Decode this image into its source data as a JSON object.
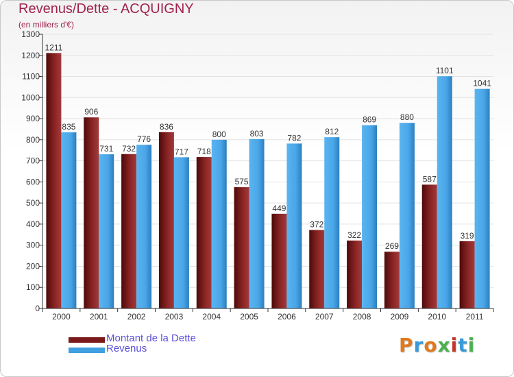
{
  "title": "Revenus/Dette - ACQUIGNY",
  "subtitle": "(en milliers d'€)",
  "legend": {
    "debt_label": "Montant de la Dette",
    "revenue_label": "Revenus"
  },
  "logo_text": "Proxiti",
  "colors": {
    "debt": "#7a1a1a",
    "revenue": "#3f9fe0",
    "title": "#a0224a",
    "legend_text": "#5a4fd8"
  },
  "chart_data": {
    "type": "bar",
    "title": "Revenus/Dette - ACQUIGNY",
    "ylabel": "(en milliers d'€)",
    "xlabel": "",
    "ylim": [
      0,
      1300
    ],
    "yticks": [
      0,
      100,
      200,
      300,
      400,
      500,
      600,
      700,
      800,
      900,
      1000,
      1100,
      1200,
      1300
    ],
    "categories": [
      "2000",
      "2001",
      "2002",
      "2003",
      "2004",
      "2005",
      "2006",
      "2007",
      "2008",
      "2009",
      "2010",
      "2011"
    ],
    "series": [
      {
        "name": "Montant de la Dette",
        "values": [
          1211,
          906,
          732,
          836,
          718,
          575,
          449,
          372,
          322,
          269,
          587,
          319
        ]
      },
      {
        "name": "Revenus",
        "values": [
          835,
          731,
          776,
          717,
          800,
          803,
          782,
          812,
          869,
          880,
          1101,
          1041
        ]
      }
    ],
    "grid": true,
    "legend_position": "bottom-left"
  }
}
